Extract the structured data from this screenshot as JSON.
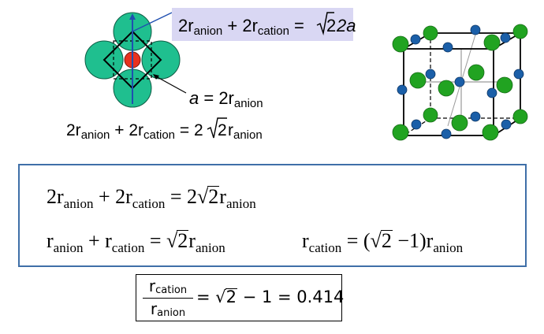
{
  "diagram": {
    "label_top_a": "2r",
    "label_top_b": "anion",
    "label_top_c": " + 2r",
    "label_top_d": "cation",
    "label_top_e": " = ",
    "label_top_f": "2",
    "label_top_g": "2a",
    "label_a_a": "a",
    "label_a_b": " = 2r",
    "label_a_c": "anion",
    "label_eq_a": "2r",
    "label_eq_b": "anion",
    "label_eq_c": " + 2r",
    "label_eq_d": "cation",
    "label_eq_e": " = 2",
    "label_eq_f": "2",
    "label_eq_g": "r",
    "label_eq_h": "anion",
    "colors": {
      "anion": "#1fbf8f",
      "cation": "#e8321e",
      "cell_anion": "#21a321",
      "cell_cation": "#1b5fa8",
      "label_bg": "#d9d7f3",
      "box_border": "#3f6fa8"
    }
  },
  "equations": {
    "line1": {
      "t1": "2r",
      "s1": "anion",
      "t2": " + 2r",
      "s2": "cation",
      "t3": " = 2",
      "t4": "2",
      "t5": "r",
      "s3": "anion"
    },
    "line2": {
      "t1": "r",
      "s1": "anion",
      "t2": " + r",
      "s2": "cation",
      "t3": " = ",
      "t4": "2",
      "t5": "r",
      "s3": "anion"
    },
    "line3": {
      "t1": "r",
      "s1": "cation",
      "t2": " = (",
      "t3": "2",
      "t4": " −1)r",
      "s2": "anion"
    }
  },
  "ratio": {
    "num_a": "r",
    "num_b": "cation",
    "den_a": "r",
    "den_b": "anion",
    "rhs_a": "= ",
    "rhs_b": "2",
    "rhs_c": " − 1 = 0.414"
  }
}
